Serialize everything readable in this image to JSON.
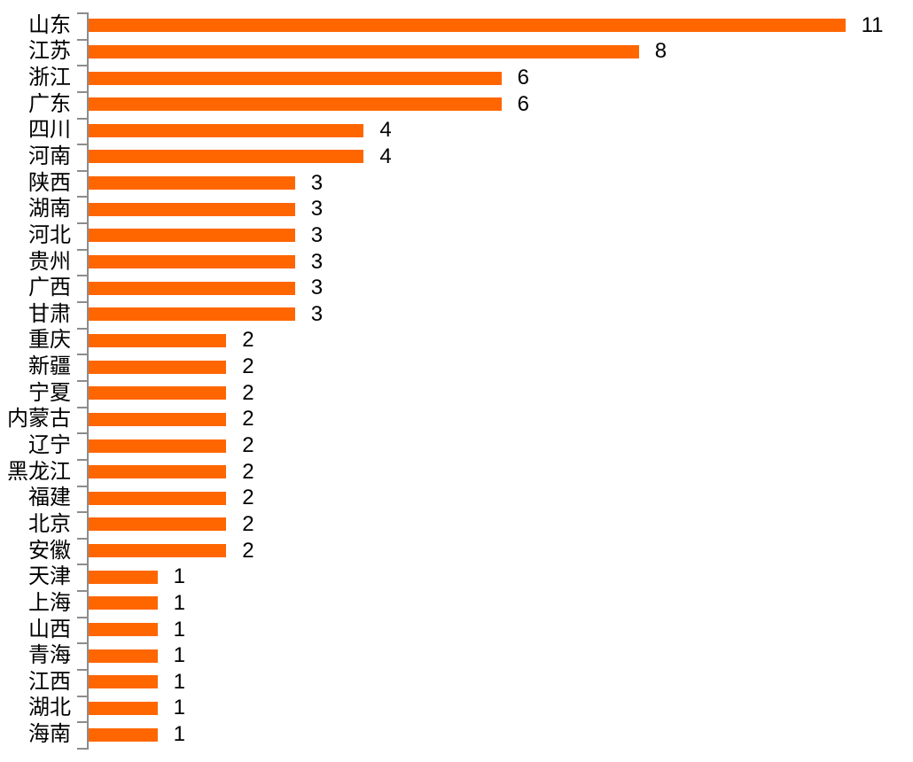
{
  "chart_data": {
    "type": "bar",
    "orientation": "horizontal",
    "title": "",
    "xlabel": "",
    "ylabel": "",
    "categories": [
      "山东",
      "江苏",
      "浙江",
      "广东",
      "四川",
      "河南",
      "陕西",
      "湖南",
      "河北",
      "贵州",
      "广西",
      "甘肃",
      "重庆",
      "新疆",
      "宁夏",
      "内蒙古",
      "辽宁",
      "黑龙江",
      "福建",
      "北京",
      "安徽",
      "天津",
      "上海",
      "山西",
      "青海",
      "江西",
      "湖北",
      "海南"
    ],
    "values": [
      11,
      8,
      6,
      6,
      4,
      4,
      3,
      3,
      3,
      3,
      3,
      3,
      2,
      2,
      2,
      2,
      2,
      2,
      2,
      2,
      2,
      1,
      1,
      1,
      1,
      1,
      1,
      1
    ],
    "xlim": [
      0,
      11
    ],
    "grid": false,
    "legend": false,
    "value_labels_shown": true,
    "bar_color": "#FF6600",
    "axis_color": "#8C8C8C",
    "text_color": "#000000"
  }
}
